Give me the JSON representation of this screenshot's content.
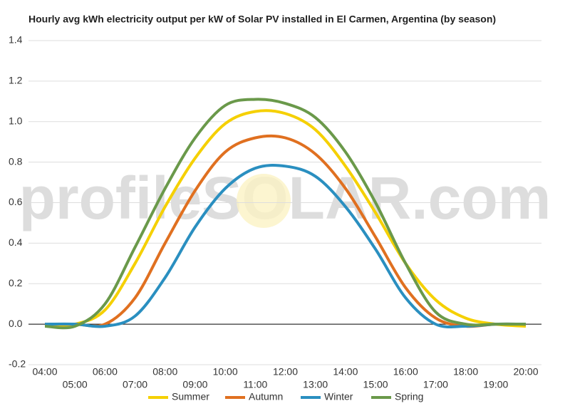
{
  "chart_data": {
    "type": "line",
    "title": "Hourly avg kWh electricity output per kW of Solar PV installed in El Carmen, Argentina (by season)",
    "watermark": "profileSOLAR.com",
    "categories": [
      "04:00",
      "05:00",
      "06:00",
      "07:00",
      "08:00",
      "09:00",
      "10:00",
      "11:00",
      "12:00",
      "13:00",
      "14:00",
      "15:00",
      "16:00",
      "17:00",
      "18:00",
      "19:00",
      "20:00"
    ],
    "series": [
      {
        "name": "Summer",
        "color": "#f5d000",
        "values": [
          -0.01,
          0.0,
          0.07,
          0.3,
          0.58,
          0.82,
          0.99,
          1.05,
          1.04,
          0.96,
          0.78,
          0.55,
          0.3,
          0.12,
          0.03,
          0.0,
          -0.01
        ]
      },
      {
        "name": "Autumn",
        "color": "#e07020",
        "values": [
          0.0,
          0.0,
          0.0,
          0.13,
          0.4,
          0.66,
          0.85,
          0.92,
          0.92,
          0.84,
          0.67,
          0.43,
          0.18,
          0.03,
          -0.01,
          0.0,
          0.0
        ]
      },
      {
        "name": "Winter",
        "color": "#2a8fc0",
        "values": [
          0.0,
          0.0,
          -0.01,
          0.04,
          0.23,
          0.48,
          0.67,
          0.77,
          0.78,
          0.73,
          0.58,
          0.37,
          0.13,
          0.0,
          -0.01,
          0.0,
          0.0
        ]
      },
      {
        "name": "Spring",
        "color": "#6a994a",
        "values": [
          -0.01,
          -0.01,
          0.1,
          0.38,
          0.67,
          0.92,
          1.08,
          1.11,
          1.09,
          1.02,
          0.85,
          0.6,
          0.3,
          0.06,
          0.0,
          0.0,
          0.0
        ]
      }
    ],
    "ylim": [
      -0.2,
      1.4
    ],
    "yticks": [
      -0.2,
      {
        "value": 0,
        "label": "0.0"
      },
      0.2,
      0.4,
      0.6,
      0.8,
      {
        "value": 1,
        "label": "1.0"
      },
      1.2,
      1.4
    ],
    "grid": true
  }
}
